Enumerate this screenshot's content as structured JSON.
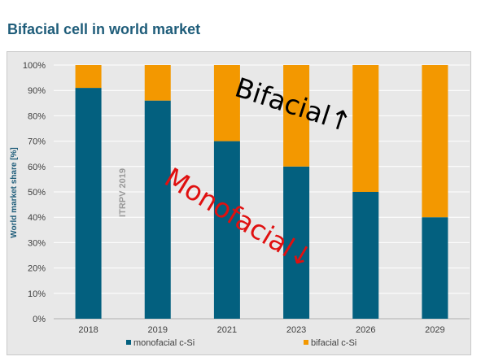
{
  "page": {
    "title": "Bifacial cell in world market"
  },
  "chart_data": {
    "type": "bar",
    "stacked": true,
    "categories": [
      "2018",
      "2019",
      "2021",
      "2023",
      "2026",
      "2029"
    ],
    "series": [
      {
        "name": "monofacial c-Si",
        "values": [
          91,
          86,
          70,
          60,
          50,
          40
        ],
        "color": "#03607f"
      },
      {
        "name": "bifacial c-Si",
        "values": [
          9,
          14,
          30,
          40,
          50,
          60
        ],
        "color": "#f39800"
      }
    ],
    "ylabel": "World market share [%]",
    "ylim": [
      0,
      100
    ],
    "yticks": [
      "0%",
      "10%",
      "20%",
      "30%",
      "40%",
      "50%",
      "60%",
      "70%",
      "80%",
      "90%",
      "100%"
    ],
    "grid": true,
    "legend_position": "bottom",
    "watermark": "ITRPV 2019",
    "annotations": [
      {
        "text": "Bifacial↑",
        "color": "#000000"
      },
      {
        "text": "Monofacial↓",
        "color": "#e01010"
      }
    ]
  }
}
